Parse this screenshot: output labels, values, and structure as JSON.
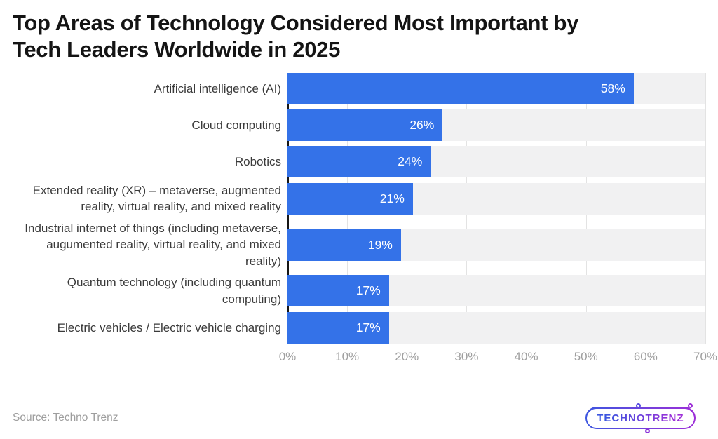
{
  "header": {
    "title": "Top Areas of Technology Considered Most Important by\nTech Leaders Worldwide in 2025"
  },
  "footer": {
    "source": "Source: Techno Trenz",
    "logo_text": "TECHNOTRENZ"
  },
  "colors": {
    "bar": "#3472e8",
    "track": "#f1f1f2",
    "grid": "#e3e3e3",
    "axis": "#161616",
    "value_text": "#ffffff",
    "label_text": "#3a3a3a",
    "tick_text": "#9e9e9e",
    "logo_gradient_from": "#3c56e0",
    "logo_gradient_to": "#9d2ed8"
  },
  "chart_data": {
    "type": "bar",
    "orientation": "horizontal",
    "title": "Top Areas of Technology Considered Most Important by Tech Leaders Worldwide in 2025",
    "categories": [
      "Artificial intelligence (AI)",
      "Cloud computing",
      "Robotics",
      "Extended reality (XR) – metaverse, augmented reality, virtual reality, and mixed reality",
      "Industrial internet of things (including metaverse, augumented reality, virtual reality, and mixed reality)",
      "Quantum technology (including quantum computing)",
      "Electric vehicles / Electric vehicle charging"
    ],
    "values": [
      58,
      26,
      24,
      21,
      19,
      17,
      17
    ],
    "value_labels": [
      "58%",
      "26%",
      "24%",
      "21%",
      "19%",
      "17%",
      "17%"
    ],
    "xlabel": "",
    "ylabel": "",
    "xlim": [
      0,
      70
    ],
    "x_ticks": [
      "0%",
      "10%",
      "20%",
      "30%",
      "40%",
      "50%",
      "60%",
      "70%"
    ],
    "grid": true,
    "legend": "none",
    "unit": "percent"
  }
}
